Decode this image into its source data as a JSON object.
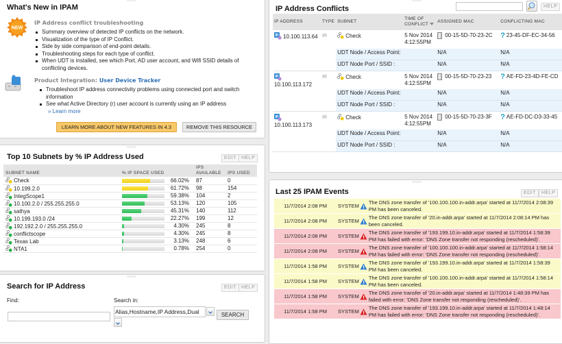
{
  "whats_new": {
    "title": "What's New in IPAM",
    "badge_label": "NEW",
    "section1": {
      "heading": "IP Address conflict troubleshooting",
      "bullets": [
        "Summary overview of detected IP conflicts on the network.",
        "Visualization of the type of IP Conflict.",
        "Side by side comparison of end-point details.",
        "Troubleshooting steps for each type of conflict.",
        "When UDT is installed, see which Port, AD user account, and Wifi SSID details of conflicting devices."
      ]
    },
    "section2": {
      "heading_prefix": "Product Integration: ",
      "heading_link": "User Device Tracker",
      "bullets": [
        "Troubleshoot IP address connectivity problems using connected port and switch information",
        "See what Active Directory (r) user account is currently using an IP address"
      ],
      "learn_more": "» Learn more"
    },
    "learn_button": "LEARN MORE ABOUT NEW FEATURES IN 4.3",
    "remove_button": "REMOVE THIS RESOURCE"
  },
  "subnets": {
    "title": "Top 10 Subnets by % IP Address Used",
    "edit": "EDIT",
    "help": "HELP",
    "columns": [
      "SUBNET NAME",
      "% IP SPACE USED",
      "IPS AVAILABLE",
      "IPS USED"
    ],
    "rows": [
      {
        "name": "Check",
        "pct": 66.02,
        "pct_label": "66.02%",
        "available": "87",
        "used": "0",
        "level": "warn"
      },
      {
        "name": "10.199.2.0",
        "pct": 61.72,
        "pct_label": "61.72%",
        "available": "98",
        "used": "154",
        "level": "warn"
      },
      {
        "name": "IntegScope1",
        "pct": 59.38,
        "pct_label": "59.38%",
        "available": "104",
        "used": "2",
        "level": "ok"
      },
      {
        "name": "10.100.2.0 / 255.255.255.0",
        "pct": 53.13,
        "pct_label": "53.13%",
        "available": "120",
        "used": "105",
        "level": "ok"
      },
      {
        "name": "sathya",
        "pct": 45.31,
        "pct_label": "45.31%",
        "available": "140",
        "used": "112",
        "level": "ok"
      },
      {
        "name": "10.199.193.0 /24",
        "pct": 22.27,
        "pct_label": "22.27%",
        "available": "199",
        "used": "12",
        "level": "ok"
      },
      {
        "name": "192.192.2.0 / 255.255.255.0",
        "pct": 4.3,
        "pct_label": "4.30%",
        "available": "245",
        "used": "8",
        "level": "ok"
      },
      {
        "name": "conflictscope",
        "pct": 4.3,
        "pct_label": "4.30%",
        "available": "245",
        "used": "8",
        "level": "ok"
      },
      {
        "name": "Texas Lab",
        "pct": 3.13,
        "pct_label": "3.13%",
        "available": "248",
        "used": "6",
        "level": "ok"
      },
      {
        "name": "NTA1",
        "pct": 0.78,
        "pct_label": "0.78%",
        "available": "254",
        "used": "0",
        "level": "ok"
      }
    ]
  },
  "search": {
    "title": "Search for IP Address",
    "edit": "EDIT",
    "help": "HELP",
    "find_label": "Find:",
    "find_value": "",
    "search_in_label": "Search in:",
    "search_in_value": "Alias,Hostname,IP Address,Dual",
    "search_button": "SEARCH"
  },
  "conflicts": {
    "title": "IP Address Conflicts",
    "search_value": "",
    "help": "HELP",
    "columns": {
      "ip": "IP ADDRESS",
      "type": "TYPE",
      "subnet": "SUBNET",
      "time": "TIME OF CONFLICT",
      "assigned": "ASSIGNED MAC",
      "conflicting": "CONFLICTING MAC"
    },
    "udt_node_label": "UDT Node / Access Point:",
    "udt_port_label": "UDT Node Port / SSID :",
    "rows": [
      {
        "ip": "10.100.113.64",
        "type": "IR",
        "subnet": "Check",
        "time": "5 Nov 2014 4:12:55PM",
        "assigned": "00-15-5D-70-23-2C",
        "conflicting": "23-45-DF-EC-34-56",
        "udt_node_assigned": "N/A",
        "udt_node_conflicting": "N/A",
        "udt_port_assigned": "N/A",
        "udt_port_conflicting": "N/A"
      },
      {
        "ip": "10.100.113.172",
        "type": "IR",
        "subnet": "Check",
        "time": "5 Nov 2014 4:12:55PM",
        "assigned": "00-15-5D-70-23-23",
        "conflicting": "AE-FD-23-4D-FE-CD",
        "udt_node_assigned": "N/A",
        "udt_node_conflicting": "N/A",
        "udt_port_assigned": "N/A",
        "udt_port_conflicting": "N/A"
      },
      {
        "ip": "10.100.113.173",
        "type": "IR",
        "subnet": "Check",
        "time": "5 Nov 2014 4:12:55PM",
        "assigned": "00-15-5D-70-23-3F",
        "conflicting": "AE-FD-DC-D3-33-45",
        "udt_node_assigned": "N/A",
        "udt_node_conflicting": "N/A",
        "udt_port_assigned": "N/A",
        "udt_port_conflicting": "N/A"
      }
    ]
  },
  "events": {
    "title": "Last 25 IPAM Events",
    "edit": "EDIT",
    "help": "HELP",
    "rows": [
      {
        "time": "11/7/2014 2:08 PM",
        "source": "SYSTEM",
        "severity": "warning",
        "message": "The DNS zone transfer of '100.100.100.in-addr.arpa' started at 11/7/2014 2:08:39 PM has been canceled."
      },
      {
        "time": "11/7/2014 2:08 PM",
        "source": "SYSTEM",
        "severity": "warning",
        "message": "The DNS zone transfer of '20.in-addr.arpa' started at 11/7/2014 2:08:14 PM has been canceled."
      },
      {
        "time": "11/7/2014 2:08 PM",
        "source": "SYSTEM",
        "severity": "error",
        "message": "The DNS zone transfer of '193.199.10.in-addr.arpa' started at 11/7/2014 1:58:39 PM has failed with error: 'DNS Zone transfer not responding (rescheduled)'."
      },
      {
        "time": "11/7/2014 2:08 PM",
        "source": "SYSTEM",
        "severity": "error",
        "message": "The DNS zone transfer of '100.100.100.in-addr.arpa' started at 11/7/2014 1:58:14 PM has failed with error: 'DNS Zone transfer not responding (rescheduled)'."
      },
      {
        "time": "11/7/2014 1:58 PM",
        "source": "SYSTEM",
        "severity": "warning",
        "message": "The DNS zone transfer of '193.199.10.in-addr.arpa' started at 11/7/2014 1:58:39 PM has been canceled."
      },
      {
        "time": "11/7/2014 1:58 PM",
        "source": "SYSTEM",
        "severity": "warning",
        "message": "The DNS zone transfer of '100.100.100.in-addr.arpa' started at 11/7/2014 1:58:14 PM has been canceled."
      },
      {
        "time": "11/7/2014 1:58 PM",
        "source": "SYSTEM",
        "severity": "error",
        "message": "The DNS zone transfer of '20.in-addr.arpa' started at 11/7/2014 1:48:39 PM has failed with error: 'DNS Zone transfer not responding (rescheduled)'."
      },
      {
        "time": "11/7/2014 1:58 PM",
        "source": "SYSTEM",
        "severity": "error",
        "message": "The DNS zone transfer of '193.199.10.in-addr.arpa' started at 11/7/2014 1:48:14 PM has failed with error: 'DNS Zone transfer not responding (rescheduled)'."
      }
    ]
  },
  "colors": {
    "bar_warn": "#f2d21a",
    "bar_ok": "#2fbd5a",
    "event_warning_bg": "#fafac8",
    "event_error_bg": "#f8c8cc",
    "link": "#2d6fb5",
    "udt_row_bg": "#e9f3fc"
  }
}
